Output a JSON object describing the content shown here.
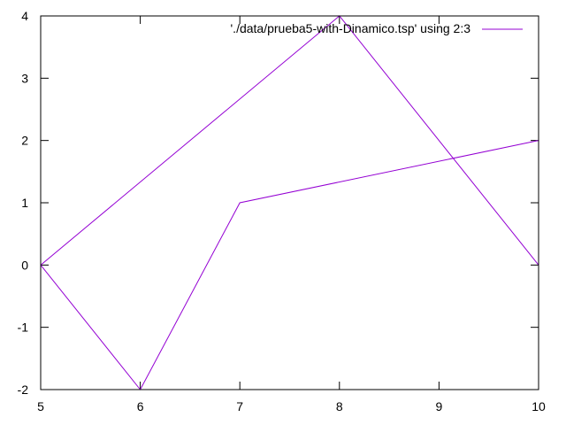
{
  "chart_data": {
    "type": "line",
    "title": "",
    "xlabel": "",
    "ylabel": "",
    "xlim": [
      5,
      10
    ],
    "ylim": [
      -2,
      4
    ],
    "x_ticks": [
      "5",
      "6",
      "7",
      "8",
      "9",
      "10"
    ],
    "y_ticks": [
      "-2",
      "-1",
      "0",
      "1",
      "2",
      "3",
      "4"
    ],
    "grid": false,
    "legend_position": "top-right",
    "series": [
      {
        "name": "'./data/prueba5-with-Dinamico.tsp' using 2:3",
        "color": "#9400d3",
        "points": [
          [
            5,
            0
          ],
          [
            8,
            4
          ],
          [
            10,
            0
          ],
          [
            10,
            2
          ],
          [
            7,
            1
          ],
          [
            6,
            -2
          ],
          [
            5,
            0
          ]
        ]
      }
    ]
  }
}
